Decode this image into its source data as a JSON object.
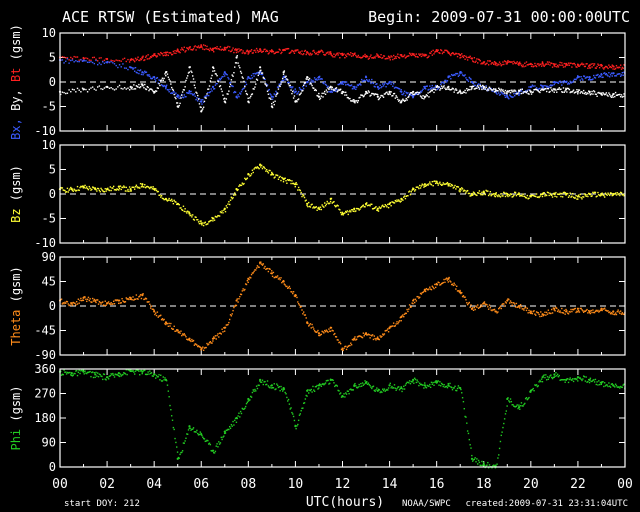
{
  "header": {
    "title": "ACE RTSW (Estimated) MAG",
    "begin": "Begin: 2009-07-31 00:00:00UTC"
  },
  "footer": {
    "start_doy": "start DOY:  212",
    "xlabel": "UTC(hours)",
    "source": "NOAA/SWPC",
    "created": "created:2009-07-31 23:31:04UTC"
  },
  "colors": {
    "background": "#000000",
    "frame": "#ffffff",
    "bx": "#3b5bff",
    "by": "#ffffff",
    "bt": "#ff2020",
    "bz": "#ffff33",
    "theta": "#ff8c1a",
    "phi": "#22cc22"
  },
  "chart_data": [
    {
      "type": "scatter",
      "panel": "Bx, By, Bt",
      "ylabel_parts": [
        {
          "text": "Bx,",
          "color_key": "bx"
        },
        {
          "text": " By,",
          "color_key": "by"
        },
        {
          "text": " Bt",
          "color_key": "bt"
        },
        {
          "text": "  (gsm)",
          "color_key": "by"
        }
      ],
      "ylim": [
        -10,
        10
      ],
      "yticks": [
        10,
        5,
        0,
        -5,
        -10
      ],
      "xlim": [
        0,
        24
      ],
      "zero_line": true,
      "series": [
        {
          "color_key": "bt",
          "x": [
            0,
            1,
            2,
            3,
            3.5,
            4,
            4.5,
            5,
            5.5,
            6,
            6.5,
            7,
            7.5,
            8,
            8.5,
            9,
            9.5,
            10,
            10.5,
            11,
            11.5,
            12,
            12.5,
            13,
            13.5,
            14,
            14.5,
            15,
            15.5,
            16,
            16.5,
            17,
            17.5,
            18,
            18.5,
            19,
            19.5,
            20,
            20.5,
            21,
            21.5,
            22,
            22.5,
            23,
            23.5
          ],
          "y": [
            5,
            4.9,
            4.7,
            4.5,
            5,
            5.5,
            6,
            6.5,
            7,
            7.3,
            6.8,
            7,
            6.5,
            6.2,
            6.7,
            6.2,
            6.5,
            6.4,
            6,
            6.2,
            5.8,
            5.5,
            5.7,
            5.2,
            5.4,
            5,
            5.5,
            5.6,
            5.4,
            6.5,
            6,
            5.5,
            4.8,
            4,
            3.9,
            4,
            3.8,
            3.7,
            3.8,
            3.6,
            3.7,
            3.5,
            3.4,
            3.3,
            3.2
          ]
        },
        {
          "color_key": "bx",
          "x": [
            0,
            1,
            2,
            3,
            3.5,
            4,
            4.5,
            5,
            5.5,
            6,
            6.5,
            7,
            7.5,
            8,
            8.5,
            9,
            9.5,
            10,
            10.5,
            11,
            11.5,
            12,
            12.5,
            13,
            13.5,
            14,
            14.5,
            15,
            15.5,
            16,
            16.5,
            17,
            17.5,
            18,
            18.5,
            19,
            19.5,
            20,
            20.5,
            21,
            21.5,
            22,
            22.5,
            23,
            23.5
          ],
          "y": [
            4.5,
            4.4,
            4,
            3,
            2,
            1,
            -1,
            -3,
            -2,
            -4,
            -1,
            2,
            -3,
            1,
            2,
            -3,
            1,
            -2,
            0,
            1,
            -2,
            0,
            -1,
            1,
            -1,
            0,
            -2,
            -3,
            -1,
            -1,
            1,
            2,
            0,
            -1,
            -2,
            -3,
            -2,
            -1,
            -1,
            0,
            0,
            1,
            1,
            1.5,
            1.8
          ]
        },
        {
          "color_key": "by",
          "x": [
            0,
            1,
            2,
            3,
            3.5,
            4,
            4.5,
            5,
            5.5,
            6,
            6.5,
            7,
            7.5,
            8,
            8.5,
            9,
            9.5,
            10,
            10.5,
            11,
            11.5,
            12,
            12.5,
            13,
            13.5,
            14,
            14.5,
            15,
            15.5,
            16,
            16.5,
            17,
            17.5,
            18,
            18.5,
            19,
            19.5,
            20,
            20.5,
            21,
            21.5,
            22,
            22.5,
            23,
            23.5
          ],
          "y": [
            -2,
            -1.5,
            -1,
            -1,
            -0.5,
            -2,
            2,
            -5,
            3,
            -6,
            3,
            -4,
            5,
            -4,
            3,
            -5,
            2,
            -4,
            1,
            -3,
            -1,
            -2,
            -4,
            -2,
            -3,
            -2,
            -4,
            -2,
            -3,
            -1,
            -1,
            -2,
            -1,
            -1,
            -1.5,
            -2,
            -1.8,
            -2,
            -1.5,
            -1.5,
            -1.5,
            -2,
            -2,
            -2.5,
            -2.5
          ]
        }
      ]
    },
    {
      "type": "scatter",
      "panel": "Bz",
      "ylabel_parts": [
        {
          "text": "Bz",
          "color_key": "bz"
        },
        {
          "text": "  (gsm)",
          "color_key": "by"
        }
      ],
      "ylim": [
        -10,
        10
      ],
      "yticks": [
        10,
        5,
        0,
        -5,
        -10
      ],
      "xlim": [
        0,
        24
      ],
      "zero_line": true,
      "series": [
        {
          "color_key": "bz",
          "x": [
            0,
            0.5,
            1,
            1.5,
            2,
            2.5,
            3,
            3.5,
            4,
            4.5,
            5,
            5.5,
            6,
            6.5,
            7,
            7.5,
            8,
            8.5,
            9,
            9.5,
            10,
            10.5,
            11,
            11.5,
            12,
            12.5,
            13,
            13.5,
            14,
            14.5,
            15,
            15.5,
            16,
            16.5,
            17,
            17.5,
            18,
            18.5,
            19,
            19.5,
            20,
            20.5,
            21,
            21.5,
            22,
            22.5,
            23,
            23.5
          ],
          "y": [
            1,
            1,
            1.5,
            1,
            1,
            1.5,
            1,
            2,
            1,
            -1,
            -2,
            -4,
            -6,
            -5,
            -3,
            1,
            4,
            6,
            4,
            3,
            2,
            -2,
            -3,
            -1,
            -4,
            -3,
            -2,
            -3,
            -2,
            -1,
            1,
            2,
            2.5,
            2,
            1,
            0,
            0.5,
            0,
            0,
            0,
            -0.5,
            0,
            0,
            0,
            -0.5,
            0,
            0,
            0
          ]
        }
      ]
    },
    {
      "type": "scatter",
      "panel": "Theta",
      "ylabel_parts": [
        {
          "text": "Theta",
          "color_key": "theta"
        },
        {
          "text": "  (gsm)",
          "color_key": "by"
        }
      ],
      "ylim": [
        -90,
        90
      ],
      "yticks": [
        90,
        45,
        0,
        -45,
        -90
      ],
      "xlim": [
        0,
        24
      ],
      "zero_line": true,
      "series": [
        {
          "color_key": "theta",
          "x": [
            0,
            0.5,
            1,
            1.5,
            2,
            2.5,
            3,
            3.5,
            4,
            4.5,
            5,
            5.5,
            6,
            6.5,
            7,
            7.5,
            8,
            8.5,
            9,
            9.5,
            10,
            10.5,
            11,
            11.5,
            12,
            12.5,
            13,
            13.5,
            14,
            14.5,
            15,
            15.5,
            16,
            16.5,
            17,
            17.5,
            18,
            18.5,
            19,
            19.5,
            20,
            20.5,
            21,
            21.5,
            22,
            22.5,
            23,
            23.5
          ],
          "y": [
            10,
            5,
            15,
            10,
            5,
            10,
            15,
            20,
            -10,
            -30,
            -45,
            -60,
            -80,
            -60,
            -40,
            10,
            50,
            80,
            60,
            45,
            20,
            -30,
            -50,
            -40,
            -80,
            -60,
            -50,
            -60,
            -40,
            -20,
            10,
            30,
            40,
            50,
            25,
            -5,
            5,
            -10,
            10,
            0,
            -10,
            -15,
            -5,
            -10,
            -5,
            -10,
            -5,
            -10
          ]
        }
      ]
    },
    {
      "type": "scatter",
      "panel": "Phi",
      "ylabel_parts": [
        {
          "text": "Phi",
          "color_key": "phi"
        },
        {
          "text": "  (gsm)",
          "color_key": "by"
        }
      ],
      "ylim": [
        0,
        360
      ],
      "yticks": [
        360,
        270,
        180,
        90,
        0
      ],
      "xlim": [
        0,
        24
      ],
      "zero_line": false,
      "series": [
        {
          "color_key": "phi",
          "x": [
            0,
            0.5,
            1,
            1.5,
            2,
            2.5,
            3,
            3.5,
            4,
            4.5,
            5,
            5.5,
            6,
            6.5,
            7,
            7.5,
            8,
            8.5,
            9,
            9.5,
            10,
            10.5,
            11,
            11.5,
            12,
            12.5,
            13,
            13.5,
            14,
            14.5,
            15,
            15.5,
            16,
            16.5,
            17,
            17.5,
            18,
            18.5,
            19,
            19.5,
            20,
            20.5,
            21,
            21.5,
            22,
            22.5,
            23,
            23.5
          ],
          "y": [
            350,
            345,
            350,
            340,
            330,
            345,
            355,
            350,
            340,
            320,
            30,
            150,
            120,
            60,
            130,
            180,
            250,
            320,
            300,
            290,
            150,
            280,
            300,
            320,
            260,
            300,
            310,
            280,
            300,
            290,
            320,
            300,
            310,
            300,
            290,
            30,
            10,
            5,
            250,
            220,
            280,
            330,
            340,
            320,
            330,
            320,
            310,
            300
          ]
        }
      ]
    }
  ],
  "xaxis": {
    "ticks": [
      "00",
      "02",
      "04",
      "06",
      "08",
      "10",
      "12",
      "14",
      "16",
      "18",
      "20",
      "22",
      "00"
    ]
  }
}
